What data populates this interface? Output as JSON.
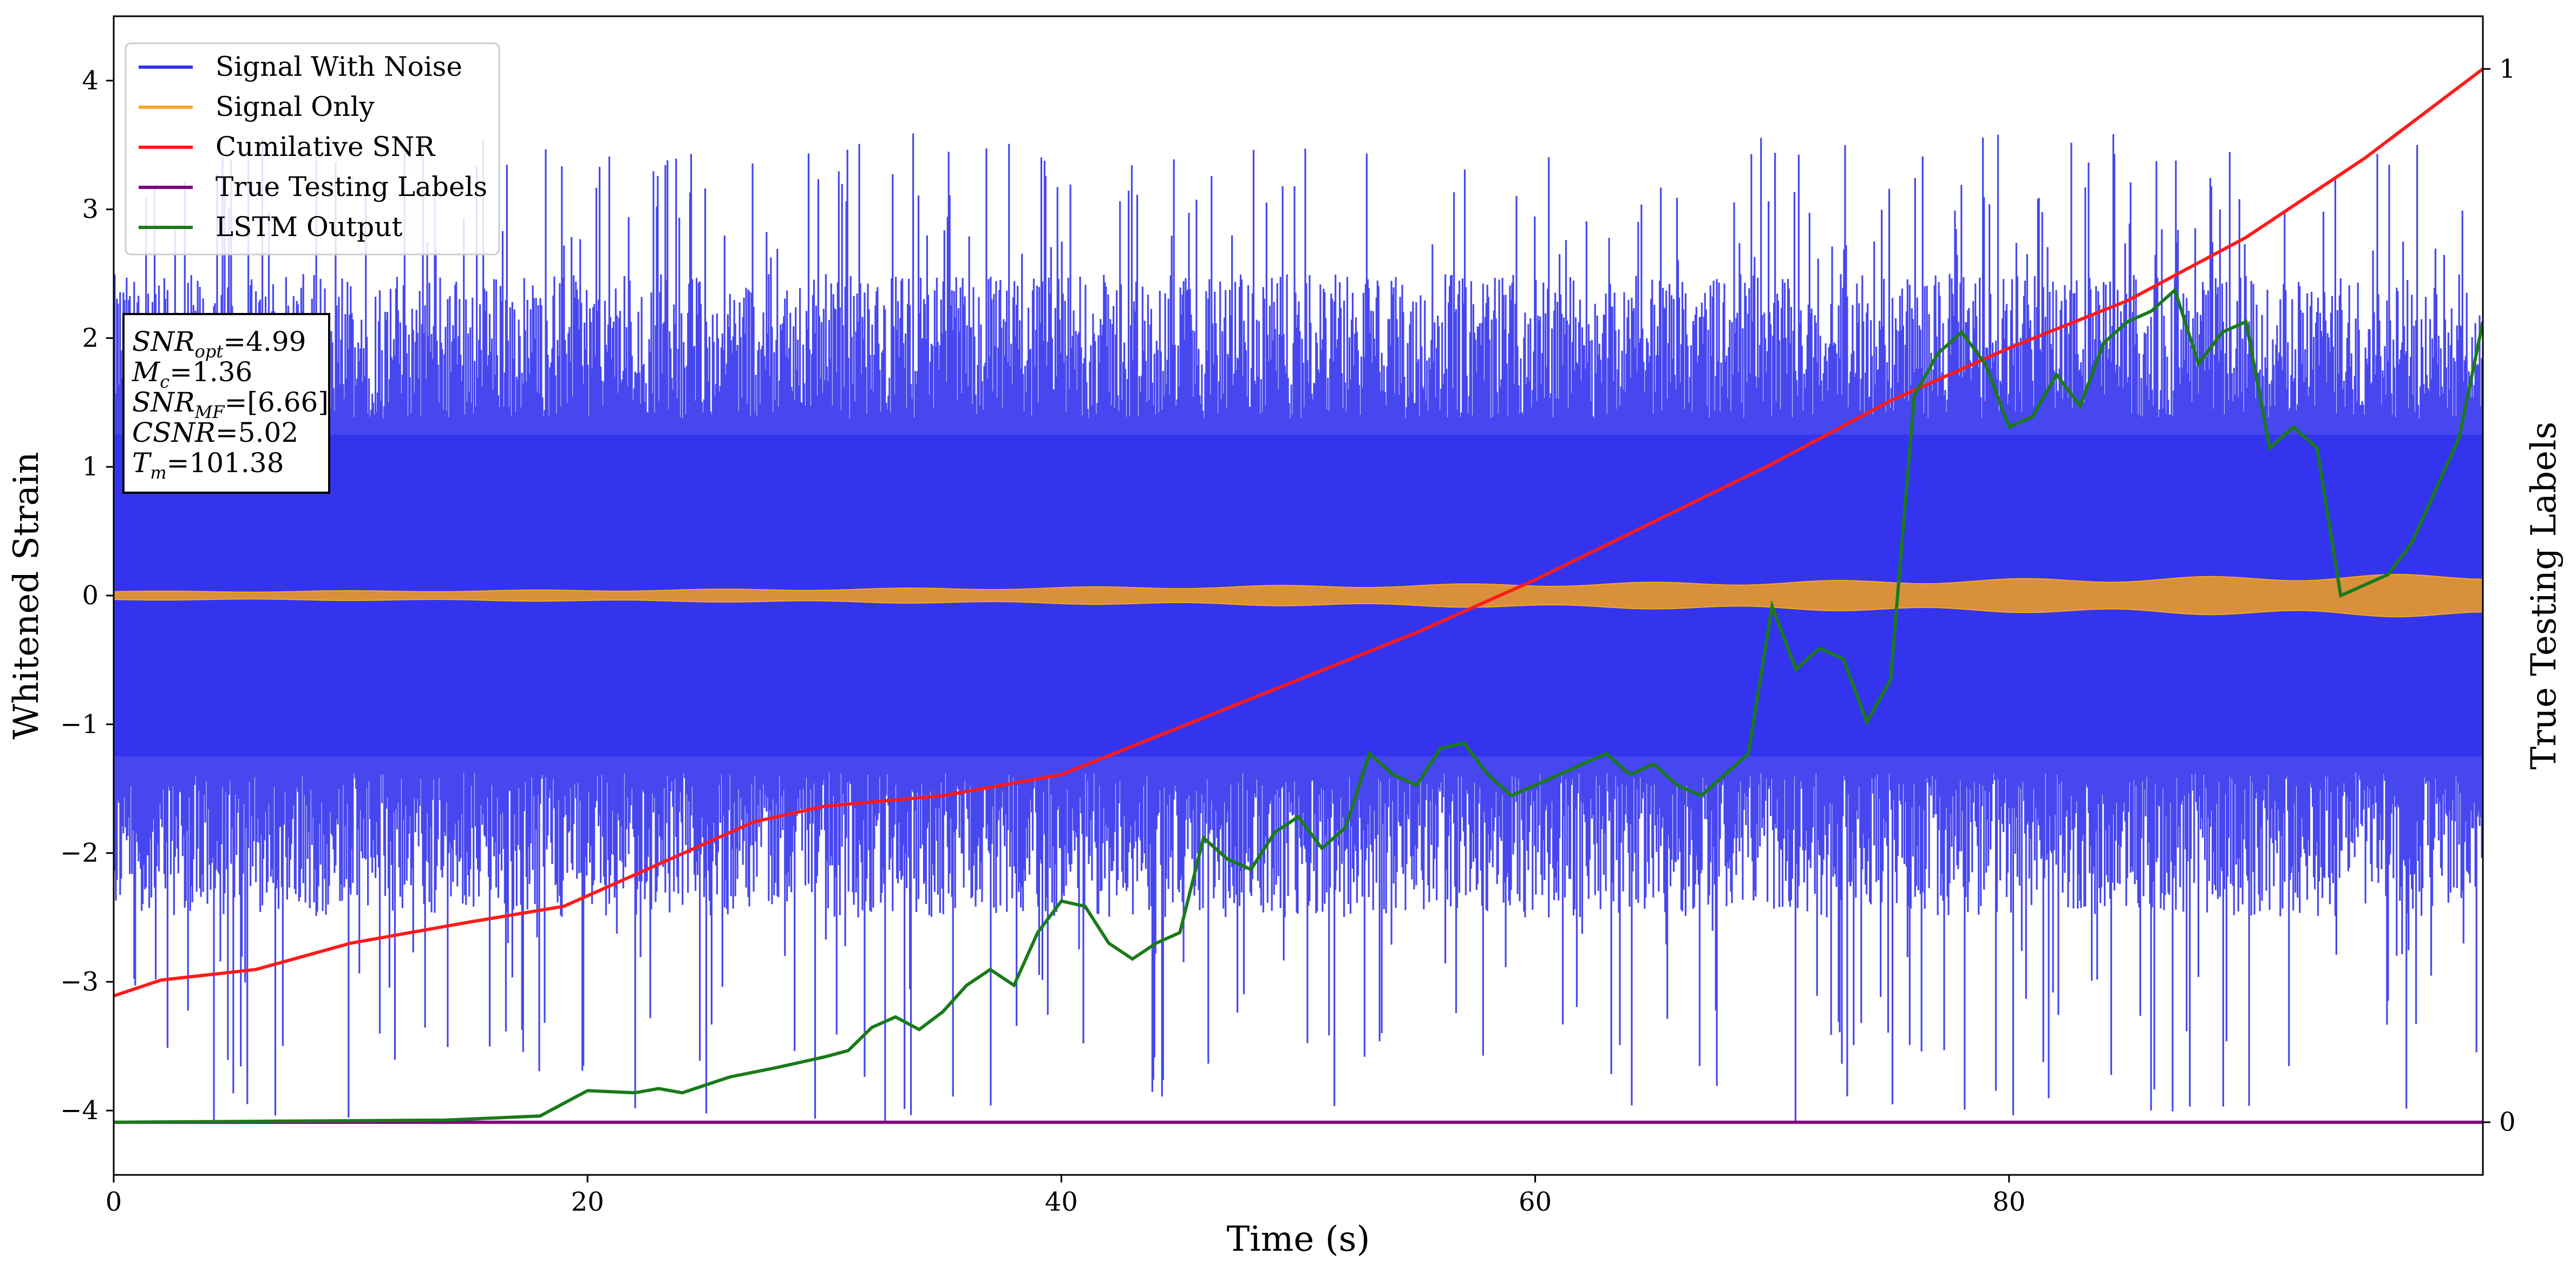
{
  "chart_data": {
    "type": "line",
    "xlabel": "Time (s)",
    "ylabel": "Whitened Strain",
    "y2label": "True Testing Labels",
    "xlim": [
      0,
      100
    ],
    "ylim": [
      -4.5,
      4.5
    ],
    "y2lim": [
      -0.05,
      1.05
    ],
    "xticks": [
      0,
      20,
      40,
      60,
      80
    ],
    "yticks": [
      -4,
      -3,
      -2,
      -1,
      0,
      1,
      2,
      3,
      4
    ],
    "y2ticks": [
      0,
      1
    ],
    "grid": false,
    "legend_position": "top-left",
    "colors": {
      "signal_with_noise": "#3333ee",
      "signal_only": "#f5a623",
      "signal_only_fill": "#d9903a",
      "cumulative_snr": "#ff1a1a",
      "true_labels": "#800080",
      "lstm_output": "#1a7a1a"
    },
    "series": [
      {
        "name": "Signal With Noise",
        "axis": "left",
        "note": "dense noise band mostly within [-2.5, 2.5] with spikes up to about +-4",
        "approx_envelope": [
          -2.5,
          2.5
        ],
        "spike_range": [
          -4.1,
          3.6
        ]
      },
      {
        "name": "Signal Only",
        "axis": "left",
        "note": "oscillation with small growing amplitude",
        "amplitude_start": 0.03,
        "amplitude_end": 0.15
      },
      {
        "name": "Cumilative SNR",
        "axis": "right",
        "x": [
          0,
          2,
          6,
          10,
          15,
          19,
          23,
          27,
          30,
          35,
          40,
          45,
          50,
          55,
          60,
          65,
          70,
          75,
          80,
          85,
          90,
          95,
          100
        ],
        "y": [
          0.12,
          0.135,
          0.145,
          0.17,
          0.19,
          0.205,
          0.245,
          0.285,
          0.3,
          0.31,
          0.33,
          0.375,
          0.42,
          0.465,
          0.515,
          0.57,
          0.625,
          0.685,
          0.735,
          0.78,
          0.84,
          0.915,
          1.0
        ]
      },
      {
        "name": "True Testing Labels",
        "axis": "right",
        "x": [
          0,
          100
        ],
        "y": [
          0,
          0
        ]
      },
      {
        "name": "LSTM Output",
        "axis": "right",
        "x": [
          0,
          14,
          18,
          19,
          20,
          22,
          23,
          24,
          26,
          28,
          30,
          31,
          32,
          33,
          34,
          35,
          36,
          37,
          38,
          39,
          40,
          41,
          42,
          43,
          44,
          45,
          46,
          47,
          48,
          49,
          50,
          51,
          52,
          53,
          54,
          55,
          56,
          57,
          58,
          59,
          60,
          61,
          62,
          63,
          64,
          65,
          66,
          67,
          68,
          69,
          70,
          71,
          72,
          73,
          74,
          75,
          76,
          77,
          78,
          79,
          80,
          81,
          82,
          83,
          84,
          85,
          86,
          87,
          88,
          89,
          90,
          91,
          92,
          93,
          94,
          95,
          96,
          97,
          98,
          99,
          100
        ],
        "y": [
          0,
          0.002,
          0.006,
          0.018,
          0.03,
          0.028,
          0.032,
          0.028,
          0.043,
          0.052,
          0.062,
          0.068,
          0.09,
          0.1,
          0.088,
          0.105,
          0.13,
          0.145,
          0.13,
          0.18,
          0.21,
          0.205,
          0.17,
          0.155,
          0.17,
          0.18,
          0.27,
          0.25,
          0.24,
          0.275,
          0.29,
          0.26,
          0.28,
          0.35,
          0.33,
          0.32,
          0.355,
          0.36,
          0.33,
          0.31,
          0.32,
          0.33,
          0.34,
          0.35,
          0.33,
          0.34,
          0.32,
          0.31,
          0.33,
          0.35,
          0.49,
          0.43,
          0.45,
          0.44,
          0.38,
          0.42,
          0.69,
          0.73,
          0.75,
          0.72,
          0.66,
          0.67,
          0.71,
          0.68,
          0.74,
          0.76,
          0.77,
          0.79,
          0.72,
          0.75,
          0.76,
          0.64,
          0.66,
          0.64,
          0.5,
          0.51,
          0.52,
          0.55,
          0.6,
          0.65,
          0.76
        ]
      }
    ],
    "annotation": {
      "lines": [
        {
          "label": "SNR",
          "sub": "opt",
          "value": "=4.99"
        },
        {
          "label": "M",
          "sub": "c",
          "value": "=1.36"
        },
        {
          "label": "SNR",
          "sub": "MF",
          "value": "=[6.66]"
        },
        {
          "label": "CSNR",
          "sub": "",
          "value": "=5.02"
        },
        {
          "label": "T",
          "sub": "m",
          "value": "=101.38"
        }
      ]
    }
  }
}
